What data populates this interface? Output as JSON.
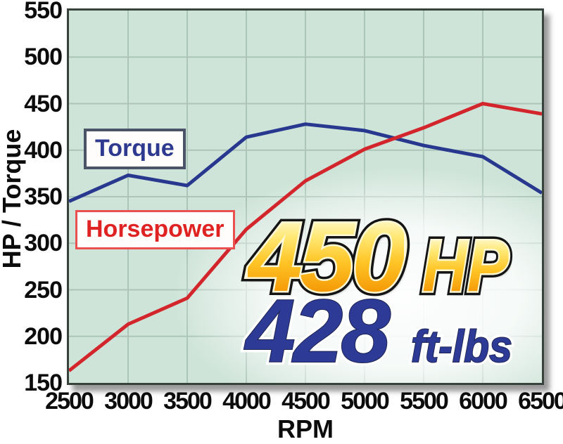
{
  "chart_data": {
    "type": "line",
    "title": "",
    "xlabel": "RPM",
    "ylabel": "HP / Torque",
    "x": [
      2500,
      3000,
      3500,
      4000,
      4500,
      5000,
      5500,
      6000,
      6500
    ],
    "x_tick_labels": [
      "2500",
      "3000",
      "3500",
      "4000",
      "4500",
      "5000",
      "5500",
      "6000",
      "6500"
    ],
    "y_tick_labels": [
      "550",
      "500",
      "450",
      "400",
      "350",
      "300",
      "250",
      "200",
      "150"
    ],
    "xlim": [
      2500,
      6500
    ],
    "ylim": [
      150,
      550
    ],
    "grid": true,
    "legend_position": "labeled boxes inside plot",
    "plot_bg": "#cfe4d9",
    "grid_color": "#abc5ba",
    "series": [
      {
        "name": "Torque",
        "color": "#28388f",
        "values": [
          345,
          373,
          362,
          414,
          428,
          421,
          405,
          393,
          354
        ]
      },
      {
        "name": "Horsepower",
        "color": "#d2262c",
        "values": [
          163,
          213,
          241,
          315,
          367,
          401,
          424,
          450,
          439
        ]
      }
    ]
  },
  "callout": {
    "hp_value": "450",
    "hp_unit": "HP",
    "torque_value": "428",
    "torque_unit": "ft-lbs",
    "gold_color": "#ffc526",
    "blue_color": "#2d3a96"
  }
}
